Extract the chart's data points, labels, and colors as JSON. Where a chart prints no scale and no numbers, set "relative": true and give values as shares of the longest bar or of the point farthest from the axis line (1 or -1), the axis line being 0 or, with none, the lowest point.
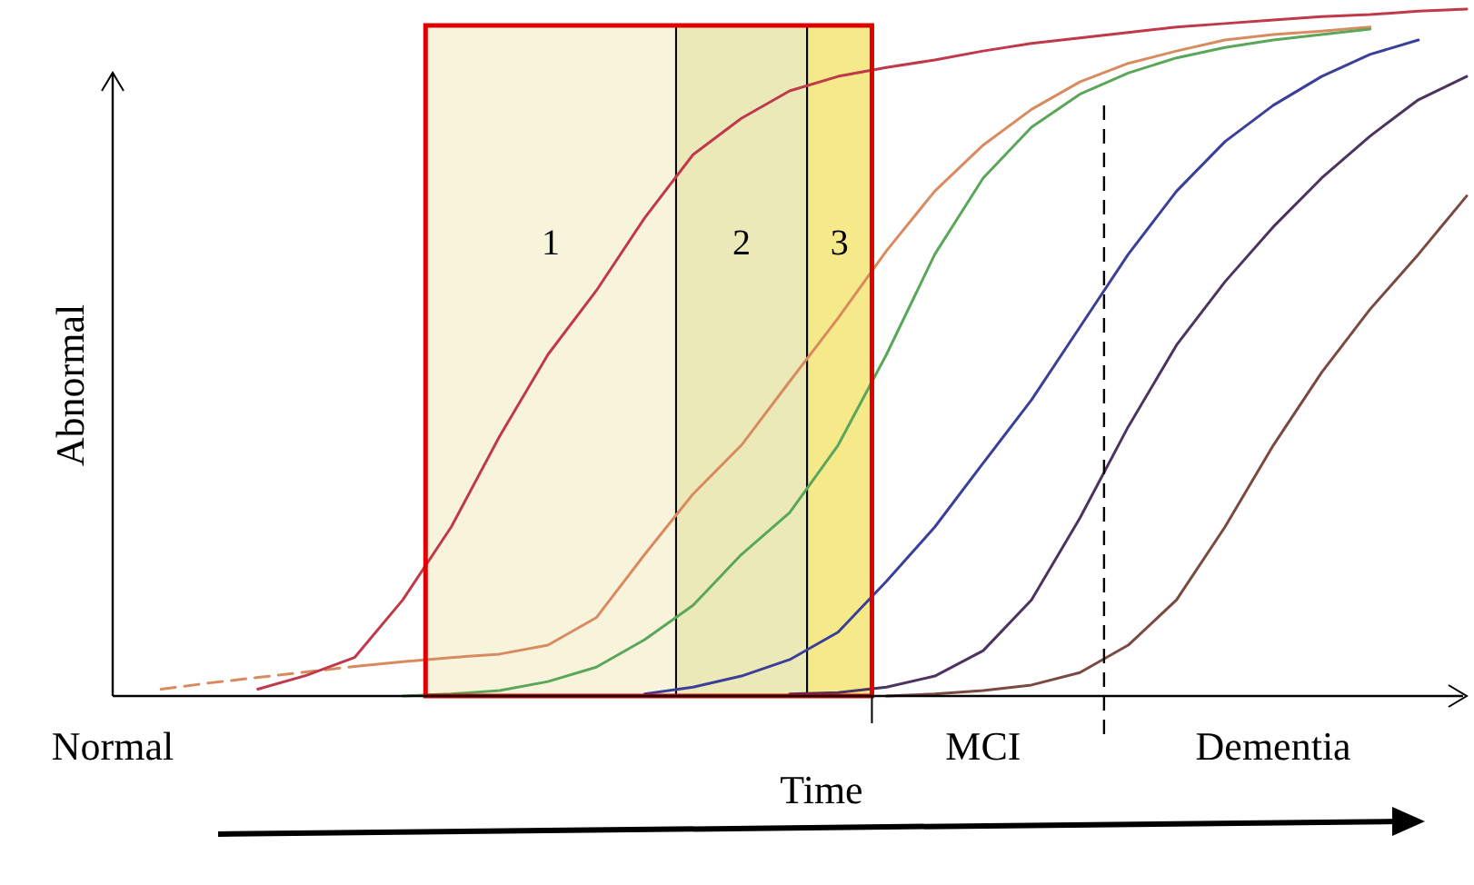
{
  "chart_data": {
    "type": "line",
    "relative": true,
    "tick_labels": "x",
    "xlabel": "Time",
    "ylabel": "Abnormal",
    "categories": [
      "Normal",
      null,
      null,
      null,
      null,
      null,
      null,
      null,
      null,
      null,
      null,
      null,
      null,
      null,
      null,
      null,
      null,
      null,
      "MCI",
      null,
      null,
      null,
      null,
      null,
      "Dementia",
      null,
      null,
      null,
      null
    ],
    "series": [
      {
        "color": "#d98b60",
        "line_style": "dashed",
        "values": [
          null,
          0.01,
          0.019,
          0.027,
          0.035,
          0.043,
          null,
          null,
          null,
          null,
          null,
          null,
          null,
          null,
          null,
          null,
          null,
          null,
          null,
          null,
          null,
          null,
          null,
          null,
          null,
          null,
          null,
          null,
          null
        ]
      },
      {
        "color": "#c0394a",
        "values": [
          null,
          null,
          null,
          0.01,
          0.03,
          0.056,
          0.14,
          0.246,
          0.378,
          0.497,
          0.59,
          0.696,
          0.788,
          0.841,
          0.881,
          0.902,
          0.915,
          0.926,
          0.939,
          0.95,
          0.958,
          0.966,
          0.974,
          0.979,
          0.984,
          0.989,
          0.992,
          0.997,
          1
        ]
      },
      {
        "color": "#d98b60",
        "values": [
          null,
          null,
          null,
          null,
          null,
          0.043,
          0.05,
          0.056,
          0.061,
          0.074,
          0.114,
          0.206,
          0.294,
          0.365,
          0.458,
          0.55,
          0.648,
          0.735,
          0.802,
          0.854,
          0.894,
          0.921,
          0.939,
          0.955,
          0.963,
          0.968,
          0.974,
          null,
          null
        ]
      },
      {
        "color": "#5aa65a",
        "values": [
          null,
          null,
          null,
          null,
          null,
          null,
          0,
          0.003,
          0.008,
          0.021,
          0.042,
          0.082,
          0.132,
          0.206,
          0.267,
          0.365,
          0.497,
          0.643,
          0.754,
          0.828,
          0.876,
          0.907,
          0.929,
          0.944,
          0.955,
          0.963,
          0.971,
          null,
          null
        ]
      },
      {
        "color": "#3a3f9a",
        "values": [
          null,
          null,
          null,
          null,
          null,
          null,
          null,
          null,
          null,
          null,
          null,
          0.003,
          0.013,
          0.029,
          0.053,
          0.093,
          0.167,
          0.246,
          0.339,
          0.431,
          0.537,
          0.643,
          0.735,
          0.807,
          0.86,
          0.902,
          0.934,
          0.955,
          null
        ]
      },
      {
        "color": "#4b3560",
        "values": [
          null,
          null,
          null,
          null,
          null,
          null,
          null,
          null,
          null,
          null,
          null,
          null,
          null,
          null,
          0.003,
          0.005,
          0.013,
          0.029,
          0.066,
          0.14,
          0.259,
          0.392,
          0.511,
          0.603,
          0.683,
          0.754,
          0.815,
          0.868,
          0.902
        ]
      },
      {
        "color": "#7a4a40",
        "values": [
          null,
          null,
          null,
          null,
          null,
          null,
          null,
          null,
          null,
          null,
          null,
          null,
          null,
          null,
          null,
          null,
          0,
          0.003,
          0.008,
          0.016,
          0.034,
          0.074,
          0.14,
          0.246,
          0.365,
          0.471,
          0.563,
          0.643,
          0.728
        ]
      }
    ],
    "annotations": [
      "1",
      "2",
      "3"
    ]
  }
}
